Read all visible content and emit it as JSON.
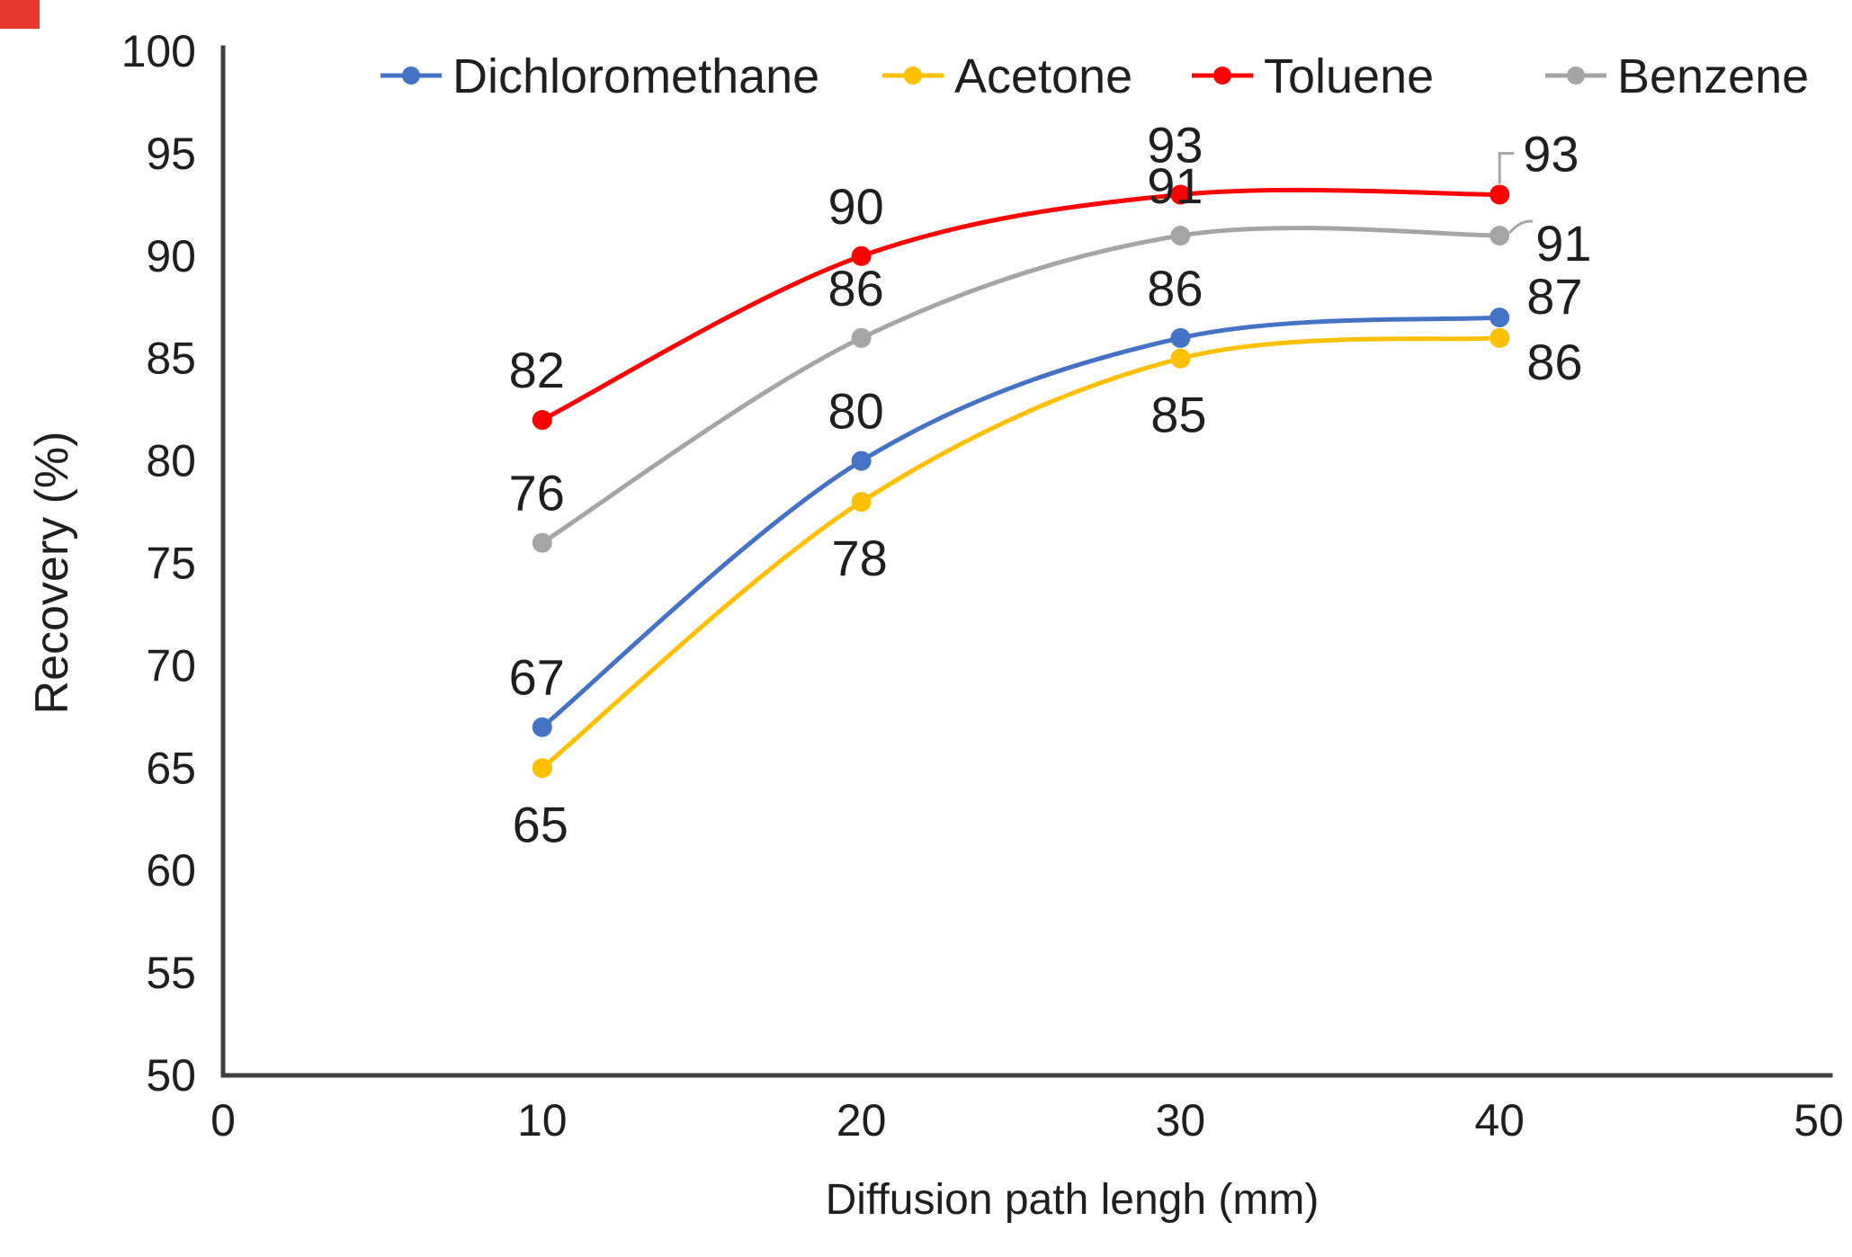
{
  "artifact": {
    "corner_mark_color": "#e8372e"
  },
  "chart_data": {
    "type": "line",
    "title": "",
    "xlabel": "Diffusion path lengh (mm)",
    "ylabel": "Recovery (%)",
    "x": [
      10,
      20,
      30,
      40
    ],
    "xlim": [
      0,
      50
    ],
    "ylim": [
      50,
      100
    ],
    "x_ticks": [
      0,
      10,
      20,
      30,
      40,
      50
    ],
    "y_ticks": [
      100,
      95,
      90,
      85,
      80,
      75,
      70,
      65,
      60,
      55,
      50
    ],
    "grid": false,
    "legend_position": "top",
    "line_style": "smooth",
    "axis_color": "#3f3f3f",
    "text_color": "#1f1f1f",
    "leader_color": "#a6a6a6",
    "series": [
      {
        "name": "Dichloromethane",
        "color": "#4472C4",
        "values": [
          67,
          80,
          86,
          87
        ],
        "label_side": [
          "above",
          "above",
          "above",
          "right-up"
        ]
      },
      {
        "name": "Acetone",
        "color": "#FFC000",
        "values": [
          65,
          78,
          85,
          86
        ],
        "label_side": [
          "below",
          "below",
          "below",
          "right-down"
        ]
      },
      {
        "name": "Toluene",
        "color": "#FF0000",
        "values": [
          82,
          90,
          93,
          93
        ],
        "label_side": [
          "above",
          "above",
          "above",
          "leader-right"
        ]
      },
      {
        "name": "Benzene",
        "color": "#A5A5A5",
        "values": [
          76,
          86,
          91,
          91
        ],
        "label_side": [
          "above",
          "above",
          "above",
          "right-mid"
        ]
      }
    ]
  }
}
